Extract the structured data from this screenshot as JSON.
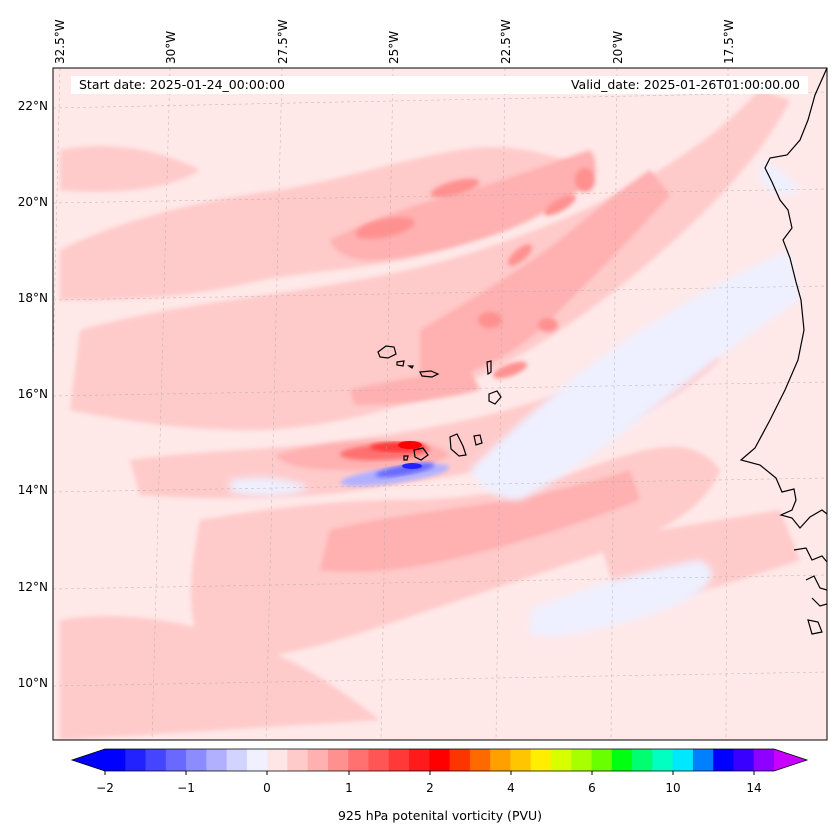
{
  "header": {
    "start_date": "Start date: 2025-01-24_00:00:00",
    "valid_date": "Valid_date: 2025-01-26T01:00:00.00"
  },
  "axes": {
    "lon_labels": [
      "32.5°W",
      "30°W",
      "27.5°W",
      "25°W",
      "22.5°W",
      "20°W",
      "17.5°W"
    ],
    "lat_labels": [
      "22°N",
      "20°N",
      "18°N",
      "16°N",
      "14°N",
      "12°N",
      "10°N"
    ]
  },
  "colorbar": {
    "label": "925 hPa potenital vorticity (PVU)",
    "tick_labels": [
      "−2",
      "−1",
      "0",
      "1",
      "2",
      "4",
      "6",
      "10",
      "14"
    ],
    "colors": [
      "#0000ff",
      "#2222ff",
      "#4545ff",
      "#6969ff",
      "#8c8cff",
      "#b0b0ff",
      "#d3d3ff",
      "#f0f0ff",
      "#ffe6e6",
      "#ffcaca",
      "#ffb0b0",
      "#ff9090",
      "#ff7070",
      "#ff5555",
      "#ff3838",
      "#ff1b1b",
      "#ff0000",
      "#ff3500",
      "#ff6a00",
      "#ff9f00",
      "#ffc600",
      "#ffee00",
      "#d8ff00",
      "#a8ff00",
      "#6aff00",
      "#00ff10",
      "#00ff70",
      "#00ffc0",
      "#00e8ff",
      "#0080ff",
      "#0000ff",
      "#3a00ff",
      "#9000ff"
    ],
    "extend_min_color": "#0000ff",
    "extend_max_color": "#c800ff"
  },
  "map": {
    "background_color": "#ffe8e8",
    "gridlines": true,
    "coastline_color": "#000000"
  }
}
